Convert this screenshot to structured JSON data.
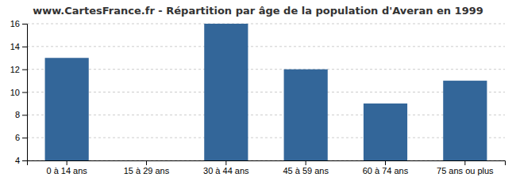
{
  "chart_data": {
    "type": "bar",
    "title": "www.CartesFrance.fr - Répartition par âge de la population d'Averan en 1999",
    "categories": [
      "0 à 14 ans",
      "15 à 29 ans",
      "30 à 44 ans",
      "45 à 59 ans",
      "60 à 74 ans",
      "75 ans ou plus"
    ],
    "values": [
      13,
      4,
      16,
      12,
      9,
      11
    ],
    "color": "#336699",
    "ylim": [
      4,
      16
    ],
    "yticks": [
      4,
      6,
      8,
      10,
      12,
      14,
      16
    ],
    "grid": true
  }
}
